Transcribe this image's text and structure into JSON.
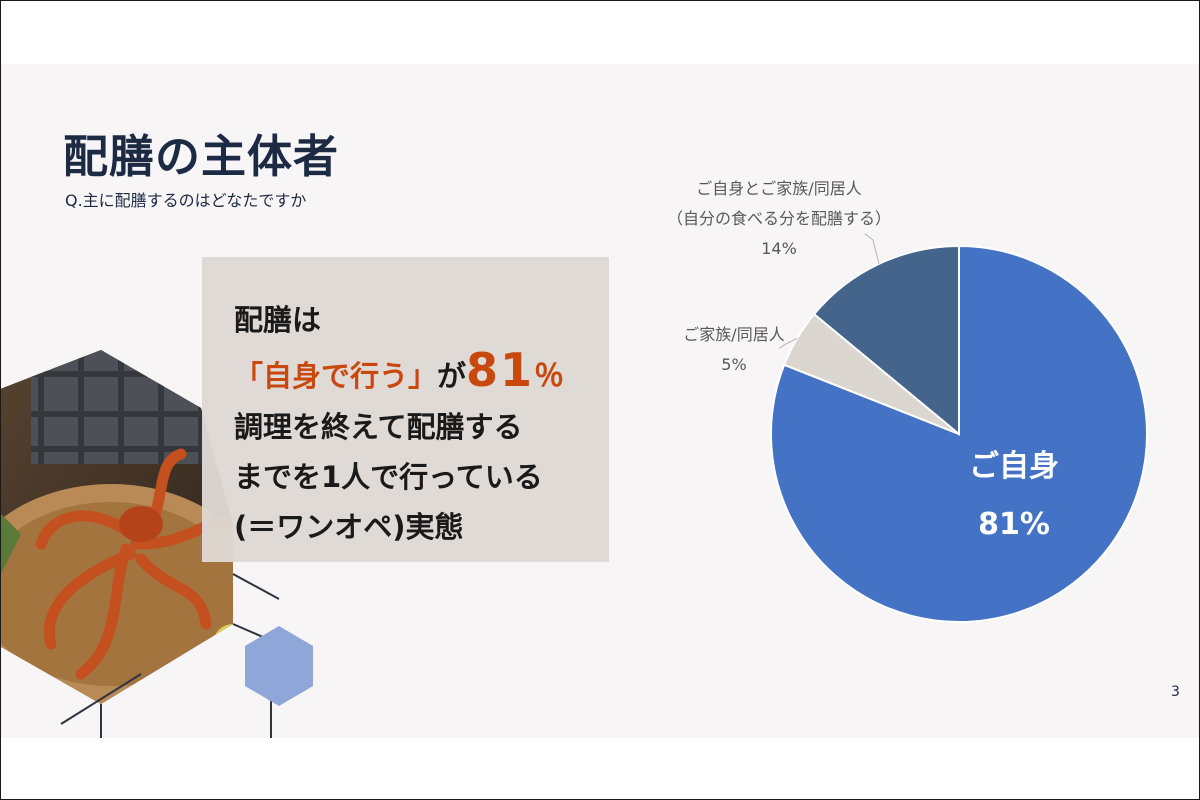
{
  "slide": {
    "title": "配膳の主体者",
    "subtitle": "Q.主に配膳するのはどなたですか",
    "page_number": "3"
  },
  "callout": {
    "line1": "配膳は",
    "line2_highlight": "「自身で行う」",
    "line2_connector": "が",
    "line2_number": "81",
    "line2_percent": "％",
    "line3": "調理を終えて配膳する",
    "line4": "までを1人で行っている",
    "line5": "(＝ワンオペ)実態"
  },
  "colors": {
    "title": "#1d2a44",
    "accent_orange": "#c9480e",
    "callout_bg": "#ded8d3",
    "hexagon_fill": "#8fa6d8"
  },
  "decoration": {
    "image_icon": "octopus-dish-photo-icon"
  },
  "chart_data": {
    "type": "pie",
    "slices": [
      {
        "label": "ご自身",
        "value": 81,
        "value_label": "81%",
        "color": "#4472c4"
      },
      {
        "label": "ご家族/同居人",
        "value": 5,
        "value_label": "5%",
        "color": "#dcd6d1"
      },
      {
        "label_line1": "ご自身とご家族/同居人",
        "label_line2": "（自分の食べる分を配膳する）",
        "value": 14,
        "value_label": "14%",
        "color": "#44648c"
      }
    ],
    "start_angle_deg": 0,
    "direction": "clockwise",
    "legend": "none"
  }
}
